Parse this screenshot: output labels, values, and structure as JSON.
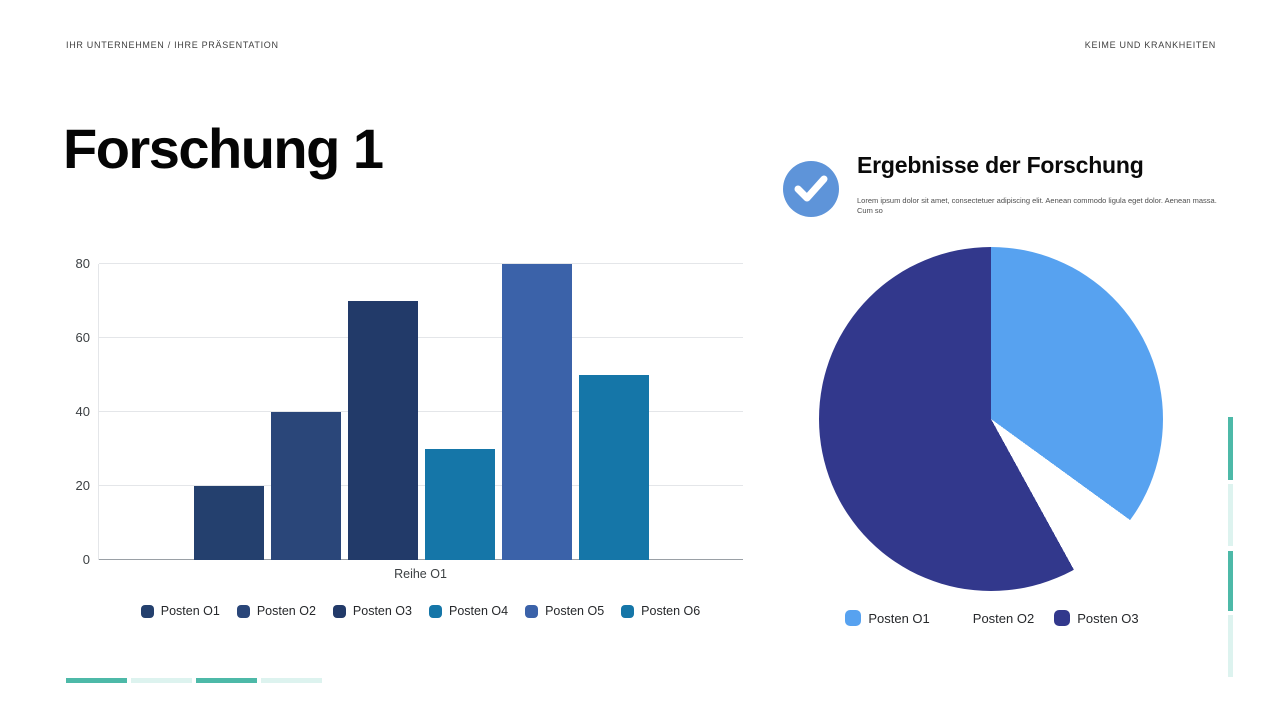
{
  "header": {
    "left": "IHR UNTERNEHMEN / IHRE PRÄSENTATION",
    "right": "KEIME UND KRANKHEITEN"
  },
  "title": "Forschung 1",
  "results_panel": {
    "heading": "Ergebnisse der Forschung",
    "body": "Lorem ipsum dolor sit amet, consectetuer adipiscing elit. Aenean commodo ligula eget dolor. Aenean massa. Cum so",
    "icon": "check-icon",
    "icon_color": "#5e94d9"
  },
  "chart_data": [
    {
      "type": "bar",
      "title": "",
      "categories": [
        "Reihe O1"
      ],
      "series": [
        {
          "name": "Posten O1",
          "values": [
            20
          ],
          "color": "#24406e"
        },
        {
          "name": "Posten O2",
          "values": [
            40
          ],
          "color": "#2a4679"
        },
        {
          "name": "Posten O3",
          "values": [
            70
          ],
          "color": "#223a69"
        },
        {
          "name": "Posten O4",
          "values": [
            30
          ],
          "color": "#1576a8"
        },
        {
          "name": "Posten O5",
          "values": [
            80
          ],
          "color": "#3b62a9"
        },
        {
          "name": "Posten O6",
          "values": [
            50
          ],
          "color": "#1576a8"
        }
      ],
      "xlabel": "Reihe O1",
      "ylabel": "",
      "ylim": [
        0,
        80
      ],
      "yticks": [
        0,
        20,
        40,
        60,
        80
      ],
      "grid": true,
      "legend_position": "bottom"
    },
    {
      "type": "pie",
      "labels": [
        "Posten O1",
        "Posten O2",
        "Posten O3"
      ],
      "values": [
        35,
        7,
        58
      ],
      "colors": [
        "#57a2f0",
        "#ffffff",
        "#32388c"
      ],
      "start_angle_deg": 0,
      "legend_position": "bottom"
    }
  ],
  "decor": {
    "teal": "#4db9a8",
    "teal_light": "#ddf3ef"
  }
}
